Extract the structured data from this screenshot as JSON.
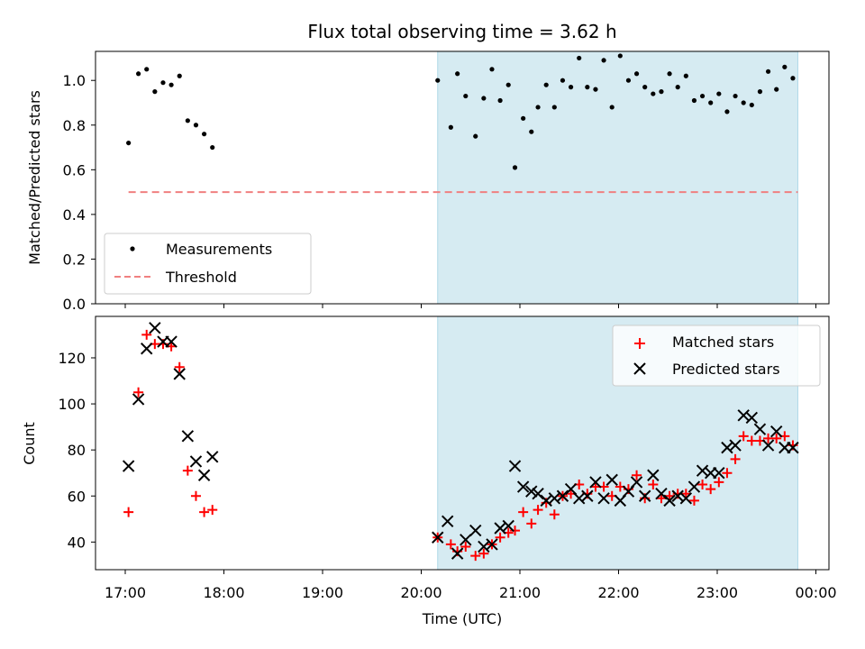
{
  "figure": {
    "title": "Flux total observing time = 3.62 h",
    "xlabel": "Time (UTC)",
    "x_ticks": [
      "17:00",
      "18:00",
      "19:00",
      "20:00",
      "21:00",
      "22:00",
      "23:00",
      "00:00"
    ],
    "shaded_interval": [
      "20:10",
      "23:49"
    ],
    "colors": {
      "shade": "#add8e6",
      "measurements": "#000000",
      "threshold": "#f08080",
      "matched": "#ff0000",
      "predicted": "#000000"
    }
  },
  "chart_data": [
    {
      "type": "scatter",
      "ylabel": "Matched/Predicted stars",
      "ylim": [
        0,
        1.13
      ],
      "y_ticks": [
        "0.0",
        "0.2",
        "0.4",
        "0.6",
        "0.8",
        "1.0"
      ],
      "legend_position": "lower-left",
      "series": [
        {
          "name": "Measurements",
          "marker": "dot",
          "points": [
            [
              "17:02",
              0.72
            ],
            [
              "17:08",
              1.03
            ],
            [
              "17:13",
              1.05
            ],
            [
              "17:18",
              0.95
            ],
            [
              "17:23",
              0.99
            ],
            [
              "17:28",
              0.98
            ],
            [
              "17:33",
              1.02
            ],
            [
              "17:38",
              0.82
            ],
            [
              "17:43",
              0.8
            ],
            [
              "17:48",
              0.76
            ],
            [
              "17:53",
              0.7
            ],
            [
              "20:10",
              1.0
            ],
            [
              "20:18",
              0.79
            ],
            [
              "20:22",
              1.03
            ],
            [
              "20:27",
              0.93
            ],
            [
              "20:33",
              0.75
            ],
            [
              "20:38",
              0.92
            ],
            [
              "20:43",
              1.05
            ],
            [
              "20:48",
              0.91
            ],
            [
              "20:53",
              0.98
            ],
            [
              "20:57",
              0.61
            ],
            [
              "21:02",
              0.83
            ],
            [
              "21:07",
              0.77
            ],
            [
              "21:11",
              0.88
            ],
            [
              "21:16",
              0.98
            ],
            [
              "21:21",
              0.88
            ],
            [
              "21:26",
              1.0
            ],
            [
              "21:31",
              0.97
            ],
            [
              "21:36",
              1.1
            ],
            [
              "21:41",
              0.97
            ],
            [
              "21:46",
              0.96
            ],
            [
              "21:51",
              1.09
            ],
            [
              "21:56",
              0.88
            ],
            [
              "22:01",
              1.11
            ],
            [
              "22:06",
              1.0
            ],
            [
              "22:11",
              1.03
            ],
            [
              "22:16",
              0.97
            ],
            [
              "22:21",
              0.94
            ],
            [
              "22:26",
              0.95
            ],
            [
              "22:31",
              1.03
            ],
            [
              "22:36",
              0.97
            ],
            [
              "22:41",
              1.02
            ],
            [
              "22:46",
              0.91
            ],
            [
              "22:51",
              0.93
            ],
            [
              "22:56",
              0.9
            ],
            [
              "23:01",
              0.94
            ],
            [
              "23:06",
              0.86
            ],
            [
              "23:11",
              0.93
            ],
            [
              "23:16",
              0.9
            ],
            [
              "23:21",
              0.89
            ],
            [
              "23:26",
              0.95
            ],
            [
              "23:31",
              1.04
            ],
            [
              "23:36",
              0.96
            ],
            [
              "23:41",
              1.06
            ],
            [
              "23:46",
              1.01
            ]
          ]
        },
        {
          "name": "Threshold",
          "marker": "dashed-line",
          "x_range": [
            "17:02",
            "23:49"
          ],
          "value": 0.5
        }
      ]
    },
    {
      "type": "scatter",
      "ylabel": "Count",
      "ylim": [
        28,
        138
      ],
      "y_ticks": [
        "40",
        "60",
        "80",
        "100",
        "120"
      ],
      "legend_position": "top-right",
      "series": [
        {
          "name": "Matched stars",
          "marker": "plus",
          "points": [
            [
              "17:02",
              53
            ],
            [
              "17:08",
              105
            ],
            [
              "17:13",
              130
            ],
            [
              "17:18",
              126
            ],
            [
              "17:23",
              126
            ],
            [
              "17:28",
              125
            ],
            [
              "17:33",
              116
            ],
            [
              "17:38",
              71
            ],
            [
              "17:43",
              60
            ],
            [
              "17:48",
              53
            ],
            [
              "17:53",
              54
            ],
            [
              "20:10",
              42
            ],
            [
              "20:18",
              39
            ],
            [
              "20:22",
              36
            ],
            [
              "20:27",
              38
            ],
            [
              "20:33",
              34
            ],
            [
              "20:38",
              35
            ],
            [
              "20:43",
              39
            ],
            [
              "20:48",
              42
            ],
            [
              "20:53",
              44
            ],
            [
              "20:57",
              45
            ],
            [
              "21:02",
              53
            ],
            [
              "21:07",
              48
            ],
            [
              "21:11",
              54
            ],
            [
              "21:16",
              57
            ],
            [
              "21:21",
              52
            ],
            [
              "21:26",
              60
            ],
            [
              "21:31",
              61
            ],
            [
              "21:36",
              65
            ],
            [
              "21:41",
              61
            ],
            [
              "21:46",
              64
            ],
            [
              "21:51",
              64
            ],
            [
              "21:56",
              60
            ],
            [
              "22:01",
              64
            ],
            [
              "22:06",
              63
            ],
            [
              "22:11",
              69
            ],
            [
              "22:16",
              59
            ],
            [
              "22:21",
              65
            ],
            [
              "22:26",
              59
            ],
            [
              "22:31",
              60
            ],
            [
              "22:36",
              61
            ],
            [
              "22:41",
              61
            ],
            [
              "22:46",
              58
            ],
            [
              "22:51",
              65
            ],
            [
              "22:56",
              63
            ],
            [
              "23:01",
              66
            ],
            [
              "23:06",
              70
            ],
            [
              "23:11",
              76
            ],
            [
              "23:16",
              86
            ],
            [
              "23:21",
              84
            ],
            [
              "23:26",
              84
            ],
            [
              "23:31",
              85
            ],
            [
              "23:36",
              85
            ],
            [
              "23:41",
              86
            ],
            [
              "23:46",
              82
            ]
          ]
        },
        {
          "name": "Predicted stars",
          "marker": "cross",
          "points": [
            [
              "17:02",
              73
            ],
            [
              "17:08",
              102
            ],
            [
              "17:13",
              124
            ],
            [
              "17:18",
              133
            ],
            [
              "17:23",
              127
            ],
            [
              "17:28",
              127
            ],
            [
              "17:33",
              113
            ],
            [
              "17:38",
              86
            ],
            [
              "17:43",
              75
            ],
            [
              "17:48",
              69
            ],
            [
              "17:53",
              77
            ],
            [
              "20:10",
              42
            ],
            [
              "20:16",
              49
            ],
            [
              "20:22",
              35
            ],
            [
              "20:27",
              41
            ],
            [
              "20:33",
              45
            ],
            [
              "20:38",
              38
            ],
            [
              "20:43",
              39
            ],
            [
              "20:48",
              46
            ],
            [
              "20:53",
              47
            ],
            [
              "20:57",
              73
            ],
            [
              "21:02",
              64
            ],
            [
              "21:07",
              62
            ],
            [
              "21:11",
              61
            ],
            [
              "21:16",
              58
            ],
            [
              "21:21",
              59
            ],
            [
              "21:26",
              60
            ],
            [
              "21:31",
              63
            ],
            [
              "21:36",
              59
            ],
            [
              "21:41",
              60
            ],
            [
              "21:46",
              66
            ],
            [
              "21:51",
              59
            ],
            [
              "21:56",
              67
            ],
            [
              "22:01",
              58
            ],
            [
              "22:06",
              62
            ],
            [
              "22:11",
              66
            ],
            [
              "22:16",
              60
            ],
            [
              "22:21",
              69
            ],
            [
              "22:26",
              61
            ],
            [
              "22:31",
              58
            ],
            [
              "22:36",
              60
            ],
            [
              "22:41",
              59
            ],
            [
              "22:46",
              64
            ],
            [
              "22:51",
              71
            ],
            [
              "22:56",
              70
            ],
            [
              "23:01",
              70
            ],
            [
              "23:06",
              81
            ],
            [
              "23:11",
              82
            ],
            [
              "23:16",
              95
            ],
            [
              "23:21",
              94
            ],
            [
              "23:26",
              89
            ],
            [
              "23:31",
              82
            ],
            [
              "23:36",
              88
            ],
            [
              "23:41",
              81
            ],
            [
              "23:46",
              81
            ]
          ]
        }
      ]
    }
  ]
}
